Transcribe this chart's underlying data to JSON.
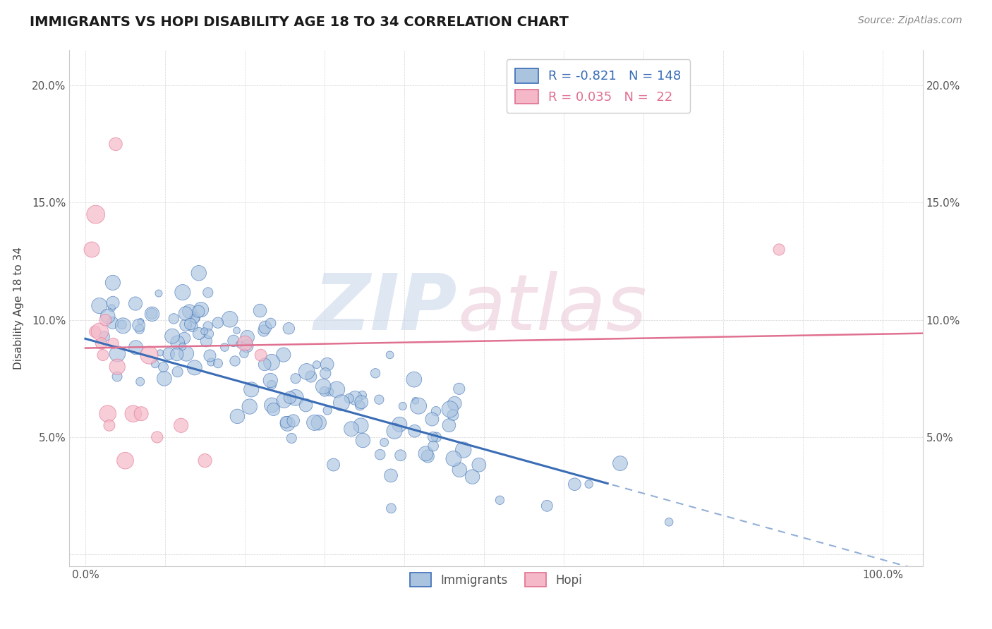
{
  "title": "IMMIGRANTS VS HOPI DISABILITY AGE 18 TO 34 CORRELATION CHART",
  "source": "Source: ZipAtlas.com",
  "ylabel": "Disability Age 18 to 34",
  "r_immigrants": -0.821,
  "n_immigrants": 148,
  "r_hopi": 0.035,
  "n_hopi": 22,
  "immigrants_color": "#aac4e0",
  "hopi_color": "#f5b8c8",
  "immigrants_line_color": "#3a6db5",
  "hopi_line_color": "#e07090",
  "background_color": "#ffffff",
  "x_ticks": [
    0.0,
    0.1,
    0.2,
    0.3,
    0.4,
    0.5,
    0.6,
    0.7,
    0.8,
    0.9,
    1.0
  ],
  "y_ticks": [
    0.0,
    0.05,
    0.1,
    0.15,
    0.2
  ],
  "xlim": [
    -0.02,
    1.05
  ],
  "ylim": [
    -0.005,
    0.215
  ],
  "seed": 7
}
